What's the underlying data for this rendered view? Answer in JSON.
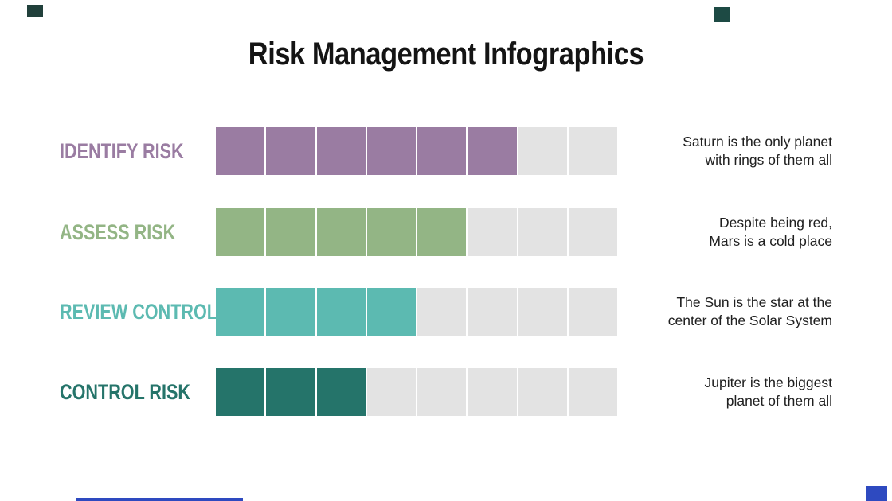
{
  "slide": {
    "title": "Risk Management Infographics"
  },
  "colors": {
    "background": "#ffffff",
    "title_text": "#141414",
    "caption_text": "#202020",
    "empty_segment": "#e3e3e3"
  },
  "rows": [
    {
      "label": "IDENTIFY RISK",
      "color": "#9a7ca2",
      "filled": 6,
      "total": 8,
      "caption": [
        "Saturn is the only planet",
        "with rings of them all"
      ]
    },
    {
      "label": "ASSESS RISK",
      "color": "#93b585",
      "filled": 5,
      "total": 8,
      "caption": [
        "Despite being red,",
        "Mars is a cold place"
      ]
    },
    {
      "label": "REVIEW CONTROL",
      "color": "#5cbab1",
      "filled": 4,
      "total": 8,
      "caption": [
        "The Sun is the star at the",
        "center of the Solar System"
      ]
    },
    {
      "label": "CONTROL RISK",
      "color": "#25746a",
      "filled": 3,
      "total": 8,
      "caption": [
        "Jupiter is the biggest",
        "planet of them all"
      ]
    }
  ],
  "decorations": {
    "top_left_square": "#21403b",
    "top_right_square": "#1d4a44",
    "bottom_line": "#2e4ac0",
    "bottom_right_square": "#2e4ac0"
  },
  "chart_data": {
    "type": "bar",
    "orientation": "horizontal",
    "title": "Risk Management Infographics",
    "categories": [
      "IDENTIFY RISK",
      "ASSESS RISK",
      "REVIEW CONTROL",
      "CONTROL RISK"
    ],
    "values": [
      6,
      5,
      4,
      3
    ],
    "xlim": [
      0,
      8
    ],
    "segments_per_bar": 8,
    "series_colors": [
      "#9a7ca2",
      "#93b585",
      "#5cbab1",
      "#25746a"
    ],
    "empty_color": "#e3e3e3",
    "annotations": [
      "Saturn is the only planet with rings of them all",
      "Despite being red, Mars is a cold place",
      "The Sun is the star at the center of the Solar System",
      "Jupiter is the biggest planet of them all"
    ],
    "legend": "none",
    "grid": false,
    "layout": "category labels left, segmented bars center, annotation text right-aligned"
  }
}
